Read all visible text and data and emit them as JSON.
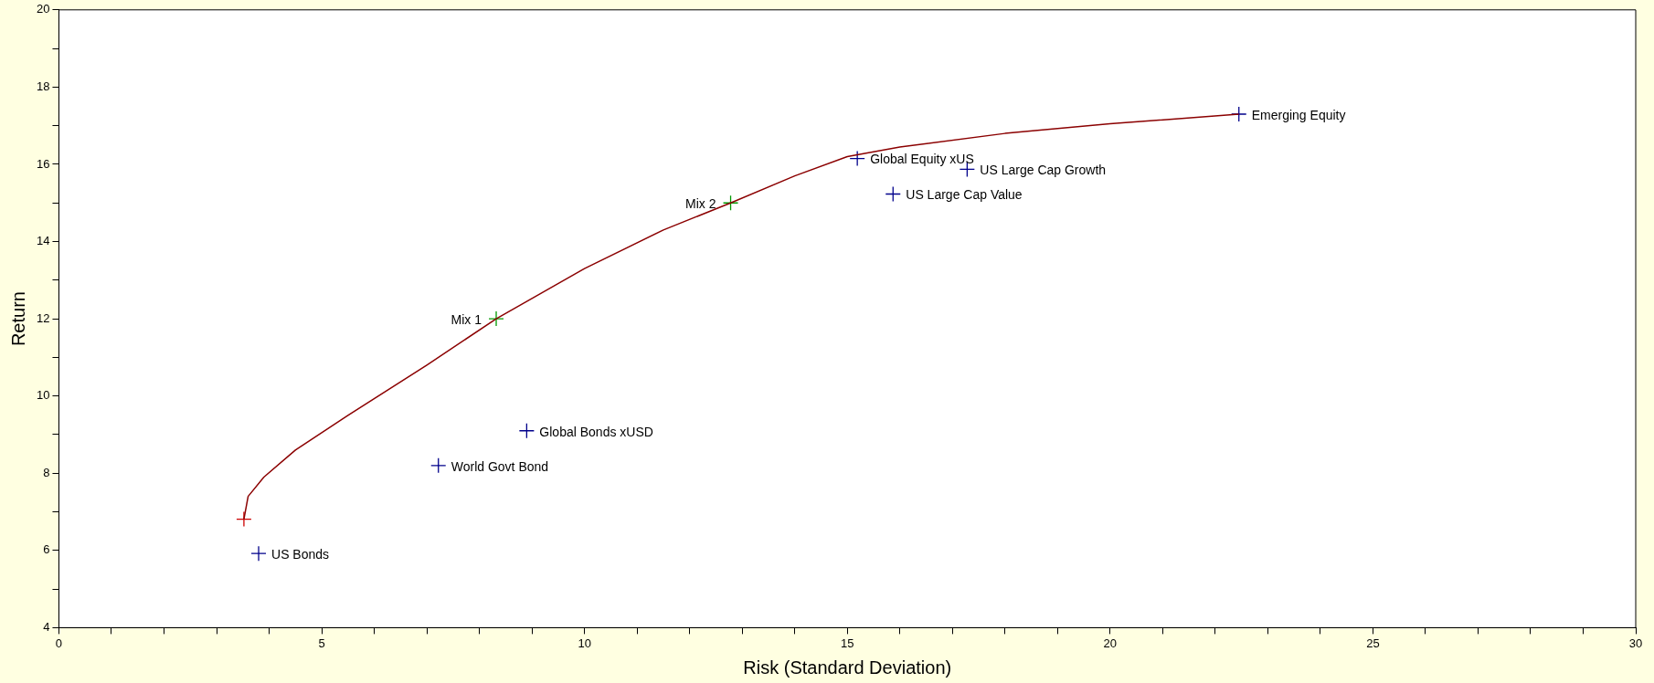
{
  "chart_data": {
    "type": "scatter",
    "xlabel": "Risk (Standard Deviation)",
    "ylabel": "Return",
    "xlim": [
      0,
      30
    ],
    "ylim": [
      4,
      20
    ],
    "xticks": [
      0,
      {
        "value": 1,
        "label": null
      },
      {
        "value": 2,
        "label": null
      },
      {
        "value": 3,
        "label": null
      },
      {
        "value": 4,
        "label": null
      },
      5,
      {
        "value": 6,
        "label": null
      },
      {
        "value": 7,
        "label": null
      },
      {
        "value": 8,
        "label": null
      },
      {
        "value": 9,
        "label": null
      },
      10,
      {
        "value": 11,
        "label": null
      },
      {
        "value": 12,
        "label": null
      },
      {
        "value": 13,
        "label": null
      },
      {
        "value": 14,
        "label": null
      },
      15,
      {
        "value": 16,
        "label": null
      },
      {
        "value": 17,
        "label": null
      },
      {
        "value": 18,
        "label": null
      },
      {
        "value": 19,
        "label": null
      },
      20,
      {
        "value": 21,
        "label": null
      },
      {
        "value": 22,
        "label": null
      },
      {
        "value": 23,
        "label": null
      },
      {
        "value": 24,
        "label": null
      },
      25,
      {
        "value": 26,
        "label": null
      },
      {
        "value": 27,
        "label": null
      },
      {
        "value": 28,
        "label": null
      },
      {
        "value": 29,
        "label": null
      },
      30
    ],
    "yticks": [
      4,
      {
        "value": 5,
        "label": null
      },
      6,
      {
        "value": 7,
        "label": null
      },
      8,
      {
        "value": 9,
        "label": null
      },
      10,
      {
        "value": 11,
        "label": null
      },
      12,
      {
        "value": 13,
        "label": null
      },
      14,
      {
        "value": 15,
        "label": null
      },
      16,
      {
        "value": 17,
        "label": null
      },
      18,
      {
        "value": 19,
        "label": null
      },
      20
    ],
    "grid": false,
    "legend": false,
    "series": [
      {
        "type": "line",
        "color": "#8b0000",
        "marker": "none",
        "x": [
          3.52,
          3.6,
          3.9,
          4.5,
          5.5,
          7,
          8.32,
          10,
          11.5,
          12.78,
          14,
          15,
          16,
          18,
          20,
          22.45
        ],
        "values": [
          6.81,
          7.4,
          7.9,
          8.6,
          9.5,
          10.8,
          12.0,
          13.3,
          14.3,
          15.0,
          15.7,
          16.2,
          16.45,
          16.8,
          17.05,
          17.3
        ]
      },
      {
        "type": "scatter",
        "color": "#cc0000",
        "marker": "cross",
        "x": [
          3.52
        ],
        "values": [
          6.81
        ]
      },
      {
        "type": "scatter",
        "color": "#00008b",
        "marker": "cross",
        "x": [
          22.45,
          15.19,
          17.28,
          15.87,
          8.9,
          7.22,
          3.8
        ],
        "values": [
          17.3,
          16.15,
          15.87,
          15.23,
          9.1,
          8.2,
          5.92
        ]
      },
      {
        "type": "scatter",
        "color": "#009900",
        "marker": "cross",
        "x": [
          12.78,
          8.32
        ],
        "values": [
          15.0,
          12.0
        ]
      }
    ],
    "annotations": [
      {
        "text": "Emerging Equity",
        "x": 22.45,
        "y": 17.3
      },
      {
        "text": "Global Equity xUS",
        "x": 15.19,
        "y": 16.15
      },
      {
        "text": "US Large Cap Growth",
        "x": 17.28,
        "y": 15.87
      },
      {
        "text": "US Large Cap Value",
        "x": 15.87,
        "y": 15.23
      },
      {
        "text": "Global Bonds xUSD",
        "x": 8.9,
        "y": 9.1
      },
      {
        "text": "World Govt Bond",
        "x": 7.22,
        "y": 8.2
      },
      {
        "text": "US Bonds",
        "x": 3.8,
        "y": 5.92
      },
      {
        "text": "Mix 2",
        "x": 12.78,
        "y": 15.0
      },
      {
        "text": "Mix 1",
        "x": 8.32,
        "y": 12.0
      }
    ]
  }
}
